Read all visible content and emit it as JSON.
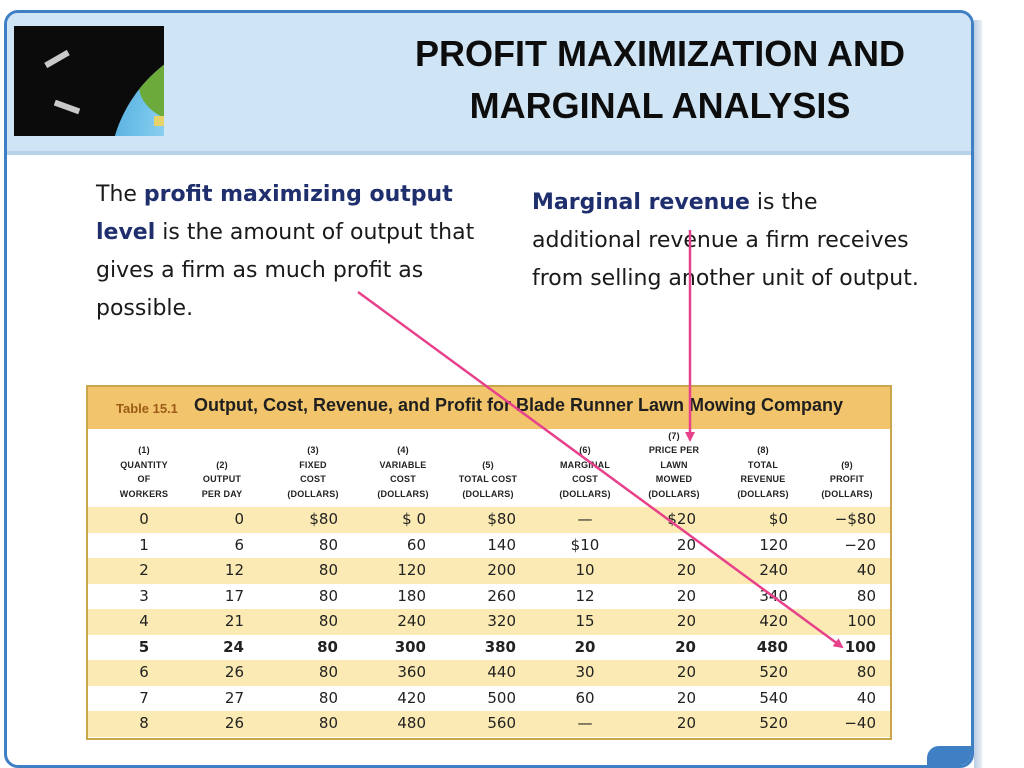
{
  "slide": {
    "title_line1": "PROFIT MAXIMIZATION AND",
    "title_line2": "MARGINAL ANALYSIS"
  },
  "definitions": {
    "left": {
      "pre": "The ",
      "term": "profit maximizing output level",
      "post": " is the amount of output that gives a firm as much profit as possible."
    },
    "right": {
      "term": "Marginal revenue",
      "post": " is the additional revenue a firm receives from selling another unit of output."
    }
  },
  "table": {
    "label": "Table 15.1",
    "title": "Output, Cost, Revenue, and Profit for Blade Runner Lawn Mowing Company",
    "headers": [
      {
        "num": "(1)",
        "l1": "QUANTITY",
        "l2": "OF",
        "l3": "WORKERS"
      },
      {
        "num": "(2)",
        "l1": "OUTPUT",
        "l2": "PER DAY"
      },
      {
        "num": "(3)",
        "l1": "FIXED",
        "l2": "COST",
        "l3": "(DOLLARS)"
      },
      {
        "num": "(4)",
        "l1": "VARIABLE",
        "l2": "COST",
        "l3": "(DOLLARS)"
      },
      {
        "num": "(5)",
        "l1": "TOTAL COST",
        "l2": "(DOLLARS)"
      },
      {
        "num": "(6)",
        "l1": "MARGINAL",
        "l2": "COST",
        "l3": "(DOLLARS)"
      },
      {
        "num": "(7)",
        "l1": "PRICE PER",
        "l2": "LAWN",
        "l3": "MOWED",
        "l4": "(DOLLARS)"
      },
      {
        "num": "(8)",
        "l1": "TOTAL",
        "l2": "REVENUE",
        "l3": "(DOLLARS)"
      },
      {
        "num": "(9)",
        "l1": "PROFIT",
        "l2": "(DOLLARS)"
      }
    ],
    "rows": [
      [
        "0",
        "0",
        "$80",
        "$ 0",
        "$80",
        "—",
        "$20",
        "$0",
        "−$80"
      ],
      [
        "1",
        "6",
        "80",
        "60",
        "140",
        "$10",
        "20",
        "120",
        "−20"
      ],
      [
        "2",
        "12",
        "80",
        "120",
        "200",
        "10",
        "20",
        "240",
        "40"
      ],
      [
        "3",
        "17",
        "80",
        "180",
        "260",
        "12",
        "20",
        "340",
        "80"
      ],
      [
        "4",
        "21",
        "80",
        "240",
        "320",
        "15",
        "20",
        "420",
        "100"
      ],
      [
        "5",
        "24",
        "80",
        "300",
        "380",
        "20",
        "20",
        "480",
        "100"
      ],
      [
        "6",
        "26",
        "80",
        "360",
        "440",
        "30",
        "20",
        "520",
        "80"
      ],
      [
        "7",
        "27",
        "80",
        "420",
        "500",
        "60",
        "20",
        "540",
        "40"
      ],
      [
        "8",
        "26",
        "80",
        "480",
        "560",
        "—",
        "20",
        "520",
        "−40"
      ]
    ],
    "highlighted_row": 5
  },
  "colors": {
    "accent": "#3f7fc4",
    "title_band": "#cfe4f5",
    "table_header": "#f2c56c",
    "row_alt": "#fbeab3",
    "term": "#1f2f6e",
    "arrow": "#e8418c"
  },
  "icons": {
    "logo": "globe-illustration-icon"
  }
}
